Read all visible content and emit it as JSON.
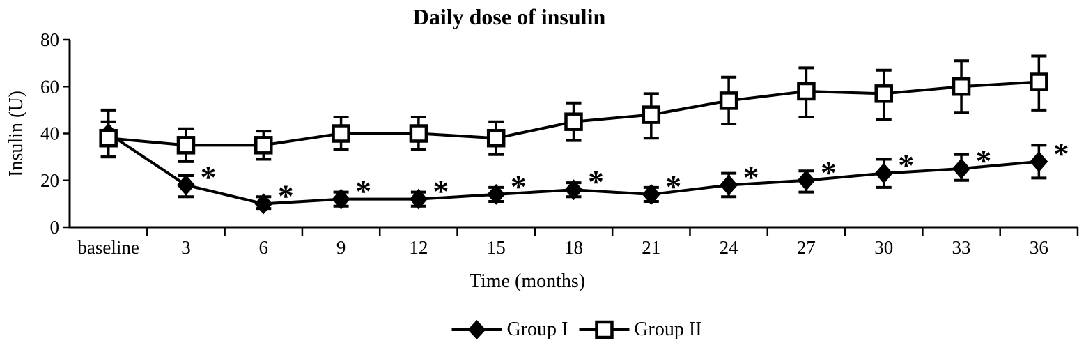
{
  "chart_data": {
    "type": "line",
    "title": "Daily dose of insulin",
    "xlabel": "Time (months)",
    "ylabel": "Insulin (U)",
    "categories": [
      "baseline",
      "3",
      "6",
      "9",
      "12",
      "15",
      "18",
      "21",
      "24",
      "27",
      "30",
      "33",
      "36"
    ],
    "ylim": [
      0,
      80
    ],
    "y_ticks": [
      0,
      20,
      40,
      60,
      80
    ],
    "grid": false,
    "legend_position": "bottom",
    "background_color": "#ffffff",
    "foreground_color": "#000000",
    "significance_symbol": "*",
    "series": [
      {
        "name": "Group I",
        "marker": "filled-diamond",
        "color": "#000000",
        "values": [
          40,
          18,
          10,
          12,
          12,
          14,
          16,
          14,
          18,
          20,
          23,
          25,
          28
        ],
        "err_lo": [
          10,
          5,
          2,
          3,
          3,
          3,
          3,
          3,
          5,
          5,
          6,
          5,
          7
        ],
        "err_hi": [
          10,
          4,
          3,
          3,
          3,
          3,
          3,
          3,
          5,
          4,
          6,
          6,
          7
        ],
        "significant": [
          false,
          true,
          true,
          true,
          true,
          true,
          true,
          true,
          true,
          true,
          true,
          true,
          true
        ]
      },
      {
        "name": "Group II",
        "marker": "open-square",
        "color": "#000000",
        "values": [
          38,
          35,
          35,
          40,
          40,
          38,
          45,
          48,
          54,
          58,
          57,
          60,
          62
        ],
        "err_lo": [
          8,
          7,
          6,
          7,
          7,
          7,
          8,
          10,
          10,
          11,
          11,
          11,
          12
        ],
        "err_hi": [
          7,
          7,
          6,
          7,
          7,
          7,
          8,
          9,
          10,
          10,
          10,
          11,
          11
        ],
        "significant": [
          false,
          false,
          false,
          false,
          false,
          false,
          false,
          false,
          false,
          false,
          false,
          false,
          false
        ]
      }
    ]
  }
}
